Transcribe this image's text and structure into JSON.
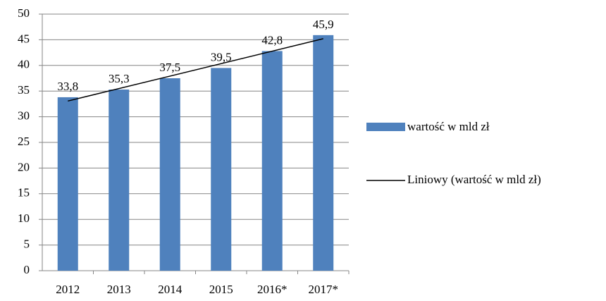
{
  "chart_data": {
    "type": "bar",
    "categories": [
      "2012",
      "2013",
      "2014",
      "2015",
      "2016*",
      "2017*"
    ],
    "series": [
      {
        "name": "wartość w mld zł",
        "color": "#4f81bd",
        "values": [
          33.8,
          35.3,
          37.5,
          39.5,
          42.8,
          45.9
        ],
        "value_labels": [
          "33,8",
          "35,3",
          "37,5",
          "39,5",
          "42,8",
          "45,9"
        ]
      }
    ],
    "trendline": {
      "name": "Liniowy (wartość w mld zł)",
      "color": "#000000",
      "kind": "linear"
    },
    "ylim": [
      0,
      50
    ],
    "yticks": [
      0,
      5,
      10,
      15,
      20,
      25,
      30,
      35,
      40,
      45,
      50
    ],
    "grid": true
  }
}
